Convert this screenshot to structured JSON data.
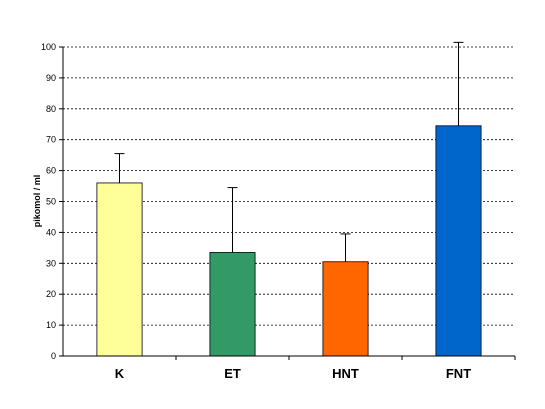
{
  "chart_data": {
    "type": "bar",
    "title": "",
    "xlabel": "",
    "ylabel": "pikomol / ml",
    "ylim": [
      0,
      100
    ],
    "yticks": [
      0,
      10,
      20,
      30,
      40,
      50,
      60,
      70,
      80,
      90,
      100
    ],
    "grid": true,
    "categories": [
      "K",
      "ET",
      "HNT",
      "FNT"
    ],
    "values": [
      56,
      33.5,
      30.5,
      74.5
    ],
    "errors": [
      9.5,
      21,
      9,
      27
    ],
    "colors": [
      "#ffff99",
      "#339966",
      "#ff6600",
      "#0066cc"
    ]
  }
}
